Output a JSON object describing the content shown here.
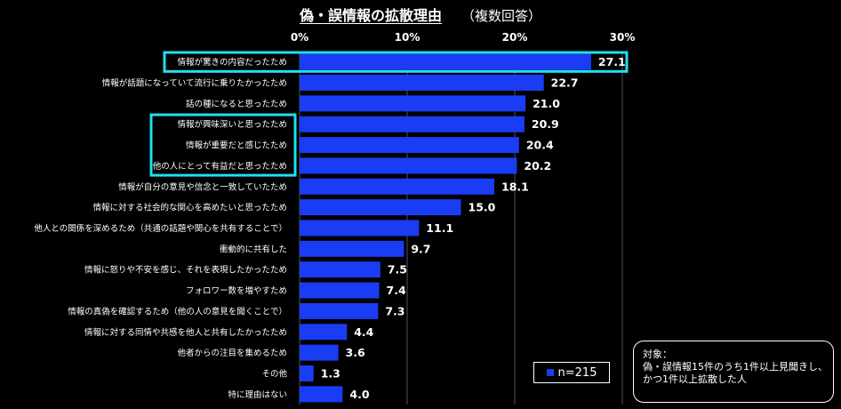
{
  "title": {
    "main": "偽・誤情報の拡散理由",
    "sub": "（複数回答）"
  },
  "legend": {
    "label": "n=215"
  },
  "note": {
    "lines": [
      "対象：",
      "偽・誤情報15件のうち1件以上見聞きし、",
      "かつ1件以上拡散した人"
    ]
  },
  "colors": {
    "bar": "#1a3cf5",
    "highlight": "#1ee0f0",
    "grid": "#555555"
  },
  "chart_data": {
    "type": "bar",
    "orientation": "horizontal",
    "xlim": [
      0,
      30
    ],
    "xticks": [
      0,
      10,
      20,
      30
    ],
    "tick_labels": [
      "0%",
      "10%",
      "20%",
      "30%"
    ],
    "categories": [
      "情報が驚きの内容だったため",
      "情報が話題になっていて流行に乗りたかったため",
      "話の種になると思ったため",
      "情報が興味深いと思ったため",
      "情報が重要だと感じたため",
      "他の人にとって有益だと思ったため",
      "情報が自分の意見や信念と一致していたため",
      "情報に対する社会的な関心を高めたいと思ったため",
      "他人との関係を深めるため（共通の話題や関心を共有することで）",
      "衝動的に共有した",
      "情報に怒りや不安を感じ、それを表現したかったため",
      "フォロワー数を増やすため",
      "情報の真偽を確認するため（他の人の意見を聞くことで）",
      "情報に対する同情や共感を他人と共有したかったため",
      "他者からの注目を集めるため",
      "その他",
      "特に理由はない"
    ],
    "values": [
      27.1,
      22.7,
      21.0,
      20.9,
      20.4,
      20.2,
      18.1,
      15.0,
      11.1,
      9.7,
      7.5,
      7.4,
      7.3,
      4.4,
      3.6,
      1.3,
      4.0
    ],
    "value_labels": [
      "27.1",
      "22.7",
      "21.0",
      "20.9",
      "20.4",
      "20.2",
      "18.1",
      "15.0",
      "11.1",
      "9.7",
      "7.5",
      "7.4",
      "7.3",
      "4.4",
      "3.6",
      "1.3",
      "4.0"
    ],
    "highlight_groups": [
      [
        0
      ],
      [
        3,
        4,
        5
      ]
    ],
    "grid": true
  }
}
